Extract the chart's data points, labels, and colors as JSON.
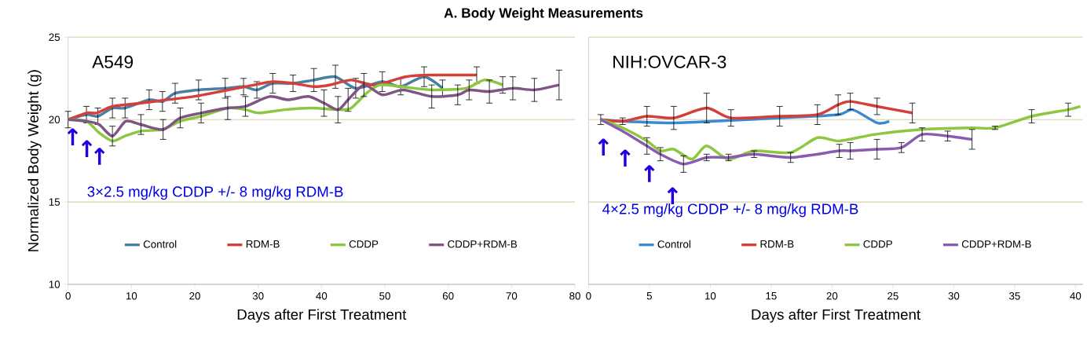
{
  "chart_data": [
    {
      "type": "line",
      "title": "A. Body Weight Measurements",
      "subtitle": "A549",
      "xlabel": "Days after First Treatment",
      "ylabel": "Normalized Body Weight (g)",
      "annotations": [
        "3×2.5 mg/kg CDDP +/- 8 mg/kg RDM-B",
        "↑",
        "↑",
        "↑"
      ],
      "xlim": [
        0,
        80
      ],
      "xticks": [
        0,
        10,
        20,
        30,
        40,
        50,
        60,
        70,
        80
      ],
      "ylim": [
        10,
        25
      ],
      "yticks": [
        10,
        15,
        20,
        25
      ],
      "grid": "y",
      "legend": "bottom",
      "series": [
        {
          "name": "Control",
          "color": "#4a7fa3",
          "x": [
            0,
            2.9,
            4.7,
            7,
            9,
            12.8,
            14.9,
            16.9,
            20.6,
            24.8,
            27.7,
            29.8,
            32.3,
            35.5,
            38.8,
            42.2,
            45.4,
            49.6,
            52.5,
            56.2,
            59.1
          ],
          "values": [
            20,
            20.3,
            20.2,
            20.7,
            20.7,
            21.2,
            21.1,
            21.6,
            21.8,
            21.9,
            22.0,
            21.8,
            22.2,
            22.2,
            22.4,
            22.6,
            21.9,
            22.3,
            22.0,
            22.6,
            21.9
          ],
          "errors": [
            0.5,
            0.5,
            0.5,
            0.6,
            0.6,
            0.6,
            0.6,
            0.6,
            0.6,
            0.6,
            0.5,
            0.5,
            0.6,
            0.5,
            0.7,
            0.7,
            0.6,
            0.6,
            0.5,
            0.6,
            0.5
          ]
        },
        {
          "name": "RDM-B",
          "color": "#d43f3a",
          "x": [
            0,
            2.9,
            4.5,
            7,
            11.5,
            15.6,
            19.8,
            24,
            28,
            32.3,
            35.5,
            38.8,
            41.3,
            44.7,
            48.4,
            53.3,
            57.4,
            64.5
          ],
          "values": [
            20,
            20.4,
            20.4,
            20.8,
            21.0,
            21.2,
            21.4,
            21.7,
            22.0,
            22.3,
            22.2,
            22.0,
            22.1,
            22.4,
            22.1,
            22.6,
            22.7,
            22.7
          ],
          "errors": [
            null,
            null,
            null,
            null,
            null,
            null,
            null,
            null,
            null,
            null,
            null,
            null,
            null,
            null,
            null,
            null,
            null,
            0.5
          ]
        },
        {
          "name": "CDDP",
          "color": "#8dc63f",
          "x": [
            0,
            2.9,
            4.9,
            7,
            9,
            11.5,
            15,
            17.7,
            21,
            25.2,
            28,
            30.1,
            34.2,
            38.4,
            42.9,
            44.7,
            47.1,
            49.2,
            52.5,
            57.4,
            62.8,
            65.7,
            68.6
          ],
          "values": [
            20,
            19.9,
            19.2,
            18.7,
            19.0,
            19.3,
            19.4,
            19.9,
            20.2,
            20.7,
            20.6,
            20.4,
            20.6,
            20.7,
            20.6,
            20.7,
            21.6,
            22.1,
            22.0,
            21.8,
            21.9,
            22.4,
            22.1
          ],
          "errors": [
            null,
            null,
            null,
            null,
            null,
            null,
            null,
            null,
            null,
            null,
            null,
            null,
            null,
            null,
            null,
            null,
            null,
            null,
            null,
            null,
            null,
            null,
            0.5
          ]
        },
        {
          "name": "CDDP+RDM-B",
          "color": "#7e5583",
          "x": [
            0,
            2.9,
            4.9,
            7,
            9.1,
            11.5,
            15,
            17.7,
            21,
            25.2,
            28,
            31.8,
            34.7,
            37.9,
            40.4,
            42.6,
            44.2,
            46.7,
            49.6,
            52.9,
            57.4,
            61.5,
            63.3,
            66.5,
            70.2,
            73.6,
            77.5
          ],
          "values": [
            20,
            19.9,
            19.7,
            19.0,
            19.9,
            19.7,
            19.4,
            20.1,
            20.4,
            20.7,
            20.8,
            21.4,
            21.2,
            21.4,
            21.0,
            20.6,
            21.2,
            22.1,
            21.5,
            21.8,
            21.4,
            21.5,
            21.8,
            21.7,
            21.9,
            21.8,
            22.1
          ],
          "errors": [
            null,
            null,
            null,
            0.6,
            null,
            0.6,
            0.6,
            0.6,
            0.6,
            0.7,
            0.6,
            null,
            null,
            null,
            0.8,
            0.8,
            0.7,
            0.7,
            null,
            null,
            0.7,
            0.6,
            0.6,
            0.7,
            0.7,
            0.7,
            0.9
          ]
        }
      ]
    },
    {
      "type": "line",
      "subtitle": "NIH:OVCAR-3",
      "xlabel": "Days after First Treatment",
      "annotations": [
        "4×2.5 mg/kg CDDP +/- 8 mg/kg RDM-B",
        "↑",
        "↑",
        "↑",
        "↑"
      ],
      "xlim": [
        0,
        40.6
      ],
      "xticks": [
        0,
        5,
        10,
        15,
        20,
        25,
        30,
        35,
        40
      ],
      "ylim": [
        10,
        25
      ],
      "yticks": [
        10,
        15,
        20,
        25
      ],
      "tick_labels": "x",
      "grid": "y",
      "legend": "bottom",
      "series": [
        {
          "name": "Control",
          "color": "#3b8ad0",
          "x": [
            1,
            2.8,
            7,
            11.7,
            15.7,
            20.5,
            21.7,
            23.7,
            24.7
          ],
          "values": [
            20,
            19.9,
            19.8,
            19.95,
            20.1,
            20.3,
            20.6,
            19.8,
            19.9
          ]
        },
        {
          "name": "RDM-B",
          "color": "#d43f3a",
          "x": [
            1,
            2.8,
            4.8,
            7,
            9.7,
            11.7,
            15.7,
            18.8,
            20.5,
            21.5,
            23.7,
            26.6
          ],
          "values": [
            20,
            19.9,
            20.2,
            20.1,
            20.7,
            20.1,
            20.2,
            20.3,
            20.9,
            21.1,
            20.8,
            20.4
          ],
          "errors": [
            0.3,
            0.2,
            0.6,
            0.7,
            0.9,
            0.5,
            0.6,
            0.6,
            0.6,
            0.5,
            0.5,
            0.6
          ]
        },
        {
          "name": "CDDP",
          "color": "#8dc63f",
          "x": [
            1,
            2.8,
            4.8,
            5.9,
            7,
            8.5,
            9.7,
            11.5,
            13.6,
            16.6,
            18.8,
            20.6,
            23.5,
            27.4,
            31.5,
            33.4,
            36.4,
            39.4,
            40.4
          ],
          "values": [
            20,
            19.5,
            18.7,
            18.1,
            18.2,
            17.6,
            18.4,
            17.6,
            18.1,
            18.0,
            18.9,
            18.7,
            19.1,
            19.4,
            19.5,
            19.5,
            20.2,
            20.6,
            20.8
          ],
          "errors": [
            null,
            null,
            null,
            null,
            null,
            null,
            null,
            null,
            null,
            null,
            null,
            null,
            null,
            null,
            null,
            0.1,
            0.4,
            0.4,
            null
          ]
        },
        {
          "name": "CDDP+RDM-B",
          "color": "#8a5cb0",
          "x": [
            1,
            2.8,
            4.8,
            5.9,
            7.8,
            9.7,
            11.5,
            13.6,
            16.6,
            20.6,
            21.5,
            23.7,
            25.7,
            27.4,
            29.5,
            31.5
          ],
          "values": [
            20,
            19.3,
            18.4,
            17.9,
            17.3,
            17.7,
            17.7,
            17.9,
            17.7,
            18.1,
            18.1,
            18.2,
            18.3,
            19.1,
            19.0,
            18.8
          ],
          "errors": [
            null,
            null,
            0.5,
            0.4,
            0.5,
            0.2,
            0.2,
            0.2,
            0.3,
            0.4,
            0.5,
            0.6,
            0.3,
            0.4,
            0.3,
            0.6
          ]
        }
      ]
    }
  ]
}
